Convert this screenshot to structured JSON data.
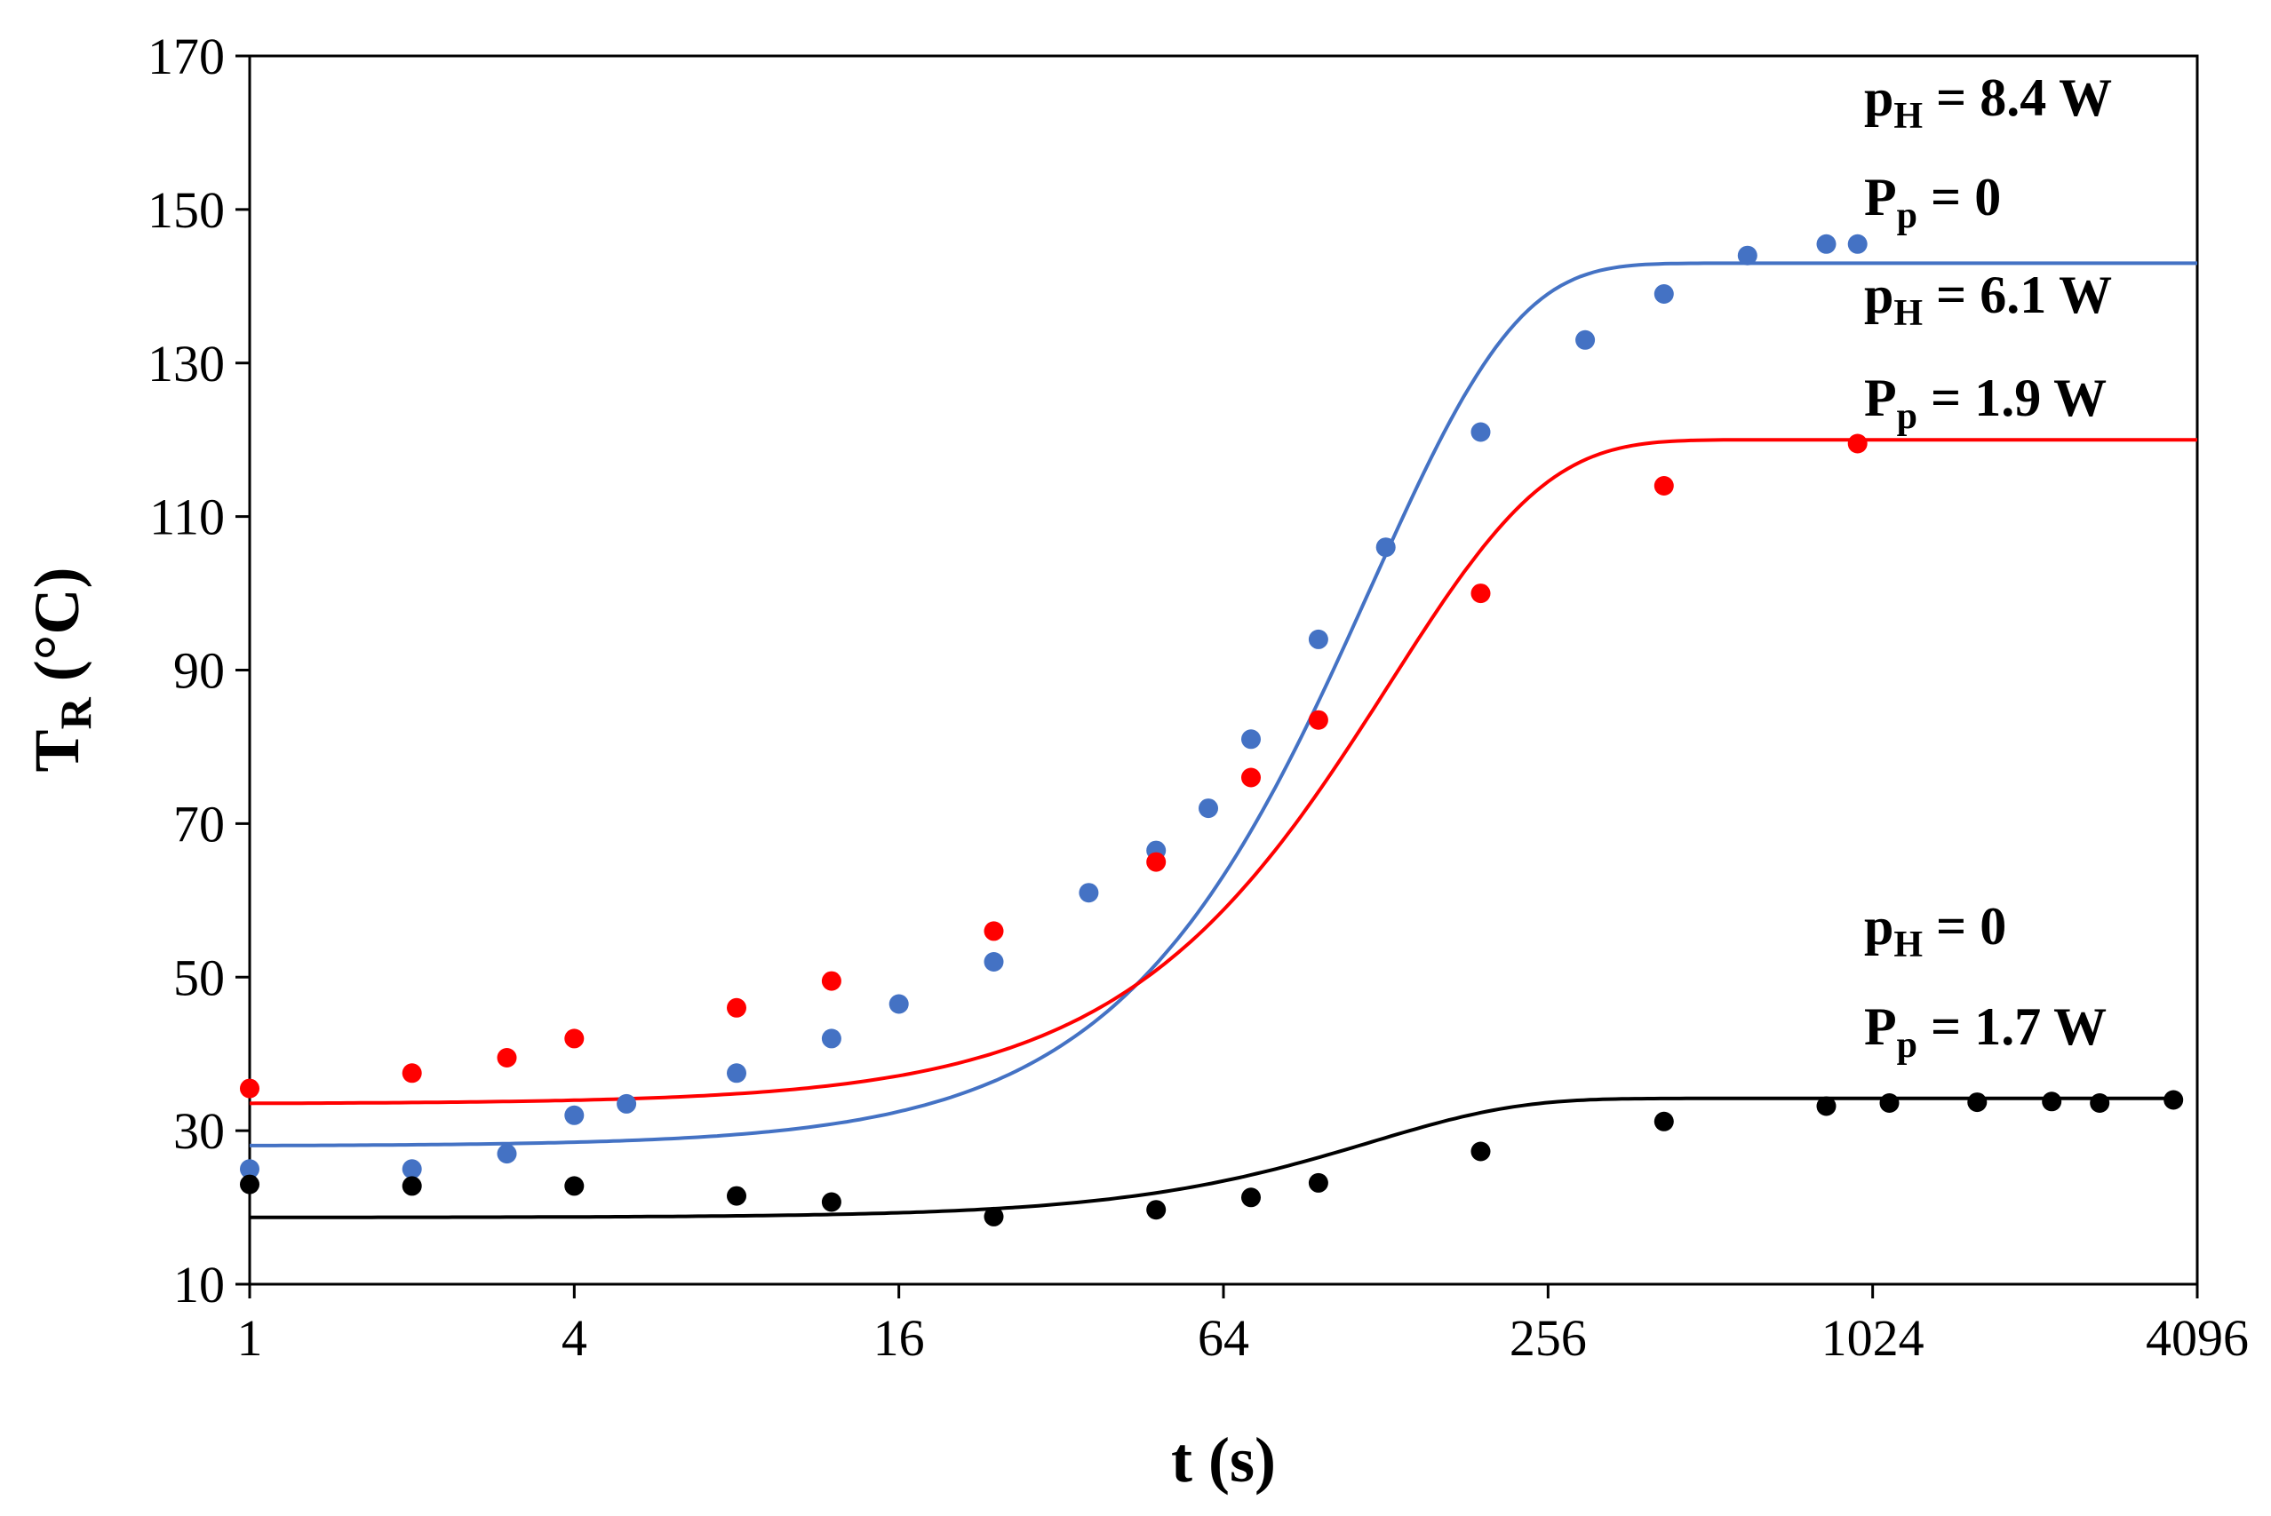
{
  "chart_data": {
    "type": "scatter",
    "title": "",
    "xlabel": "t (s)",
    "ylabel": {
      "main": "T",
      "sub": "R",
      "unit": " (°C)"
    },
    "xscale": "log2",
    "xlim": [
      1,
      4096
    ],
    "ylim": [
      10,
      170
    ],
    "x_ticks": [
      1,
      4,
      16,
      64,
      256,
      1024,
      4096
    ],
    "x_tick_labels": [
      "1",
      "4",
      "16",
      "64",
      "256",
      "1024",
      "4096"
    ],
    "y_ticks": [
      10,
      30,
      50,
      70,
      90,
      110,
      130,
      150,
      170
    ],
    "y_tick_labels": [
      "10",
      "30",
      "50",
      "70",
      "90",
      "110",
      "130",
      "150",
      "170"
    ],
    "grid": false,
    "series": [
      {
        "name": "pH = 8.4 W, Pp = 0",
        "color": "#4472C4",
        "points": [
          [
            1,
            25
          ],
          [
            2,
            25
          ],
          [
            3,
            27
          ],
          [
            4,
            32
          ],
          [
            5,
            33.5
          ],
          [
            8,
            37.5
          ],
          [
            12,
            42
          ],
          [
            16,
            46.5
          ],
          [
            24,
            52
          ],
          [
            36,
            61
          ],
          [
            48,
            66.5
          ],
          [
            60,
            72
          ],
          [
            72,
            81
          ],
          [
            96,
            94
          ],
          [
            128,
            106
          ],
          [
            192,
            121
          ],
          [
            300,
            133
          ],
          [
            420,
            139
          ],
          [
            600,
            144
          ],
          [
            840,
            145.5
          ],
          [
            960,
            145.5
          ]
        ],
        "fit": {
          "base": 28,
          "amplitude": 115,
          "tau": 120,
          "n": 1.6,
          "xmax": 4096
        }
      },
      {
        "name": "pH = 6.1 W, Pp = 1.9 W",
        "color": "#FF0000",
        "points": [
          [
            1,
            35.5
          ],
          [
            2,
            37.5
          ],
          [
            3,
            39.5
          ],
          [
            4,
            42
          ],
          [
            8,
            46
          ],
          [
            12,
            49.5
          ],
          [
            24,
            56
          ],
          [
            48,
            65
          ],
          [
            72,
            76
          ],
          [
            96,
            83.5
          ],
          [
            192,
            100
          ],
          [
            420,
            114
          ],
          [
            960,
            119.5
          ]
        ],
        "fit": {
          "base": 33.5,
          "amplitude": 86.5,
          "tau": 130,
          "n": 1.5,
          "xmax": 4096
        }
      },
      {
        "name": "pH = 0, Pp = 1.7 W",
        "color": "#000000",
        "points": [
          [
            1,
            23
          ],
          [
            2,
            22.8
          ],
          [
            4,
            22.8
          ],
          [
            8,
            21.5
          ],
          [
            12,
            20.7
          ],
          [
            24,
            18.8
          ],
          [
            48,
            19.7
          ],
          [
            72,
            21.3
          ],
          [
            96,
            23.2
          ],
          [
            192,
            27.3
          ],
          [
            420,
            31.2
          ],
          [
            840,
            33.2
          ],
          [
            1100,
            33.6
          ],
          [
            1600,
            33.7
          ],
          [
            2200,
            33.8
          ],
          [
            2700,
            33.6
          ],
          [
            3700,
            34
          ]
        ],
        "fit": {
          "base": 18.7,
          "amplitude": 15.5,
          "tau": 120,
          "n": 1.6,
          "xmax": 3700
        }
      }
    ],
    "annotations": [
      {
        "main": "p",
        "sub": "H",
        "rest": " = 8.4 W"
      },
      {
        "main": "P",
        "sub": "p",
        "rest": " = 0"
      },
      {
        "main": "p",
        "sub": "H",
        "rest": " = 6.1 W"
      },
      {
        "main": "P",
        "sub": "p",
        "rest": " = 1.9 W"
      },
      {
        "main": "p",
        "sub": "H",
        "rest": " = 0"
      },
      {
        "main": "P",
        "sub": "p",
        "rest": " = 1.7 W"
      }
    ]
  }
}
